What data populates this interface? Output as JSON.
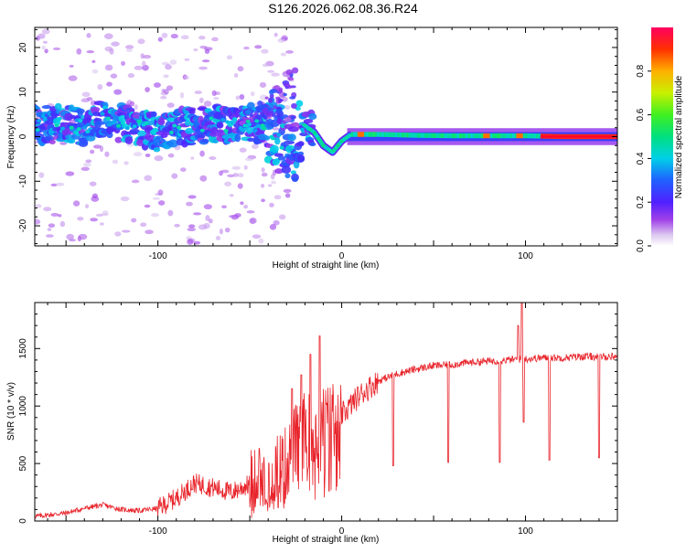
{
  "title": "S126.2026.062.08.36.R24",
  "colors": {
    "line": "#e8232a",
    "axis": "#000000",
    "background": "#ffffff"
  },
  "chart_data": [
    {
      "type": "heatmap",
      "xlabel": "Height of straight line (km)",
      "ylabel": "Frequency (Hz)",
      "xlim": [
        -167,
        150
      ],
      "ylim": [
        -24.5,
        24.5
      ],
      "x_ticks": [
        -100,
        0,
        100
      ],
      "x_tick_labels": [
        "-100",
        "0",
        "100"
      ],
      "y_ticks": [
        -20,
        -10,
        0,
        10,
        20
      ],
      "y_tick_labels": [
        "-20",
        "-10",
        "0",
        "10",
        "20"
      ],
      "colorbar": {
        "label": "Normalized spectral amplitude",
        "range": [
          0,
          1
        ],
        "ticks": [
          0,
          0.2,
          0.4,
          0.6,
          0.8
        ],
        "tick_labels": [
          "0.0",
          "0.2",
          "0.4",
          "0.6",
          "0.8"
        ]
      },
      "ridge_profile": [
        [
          -167,
          2.5
        ],
        [
          -150,
          3.0
        ],
        [
          -140,
          2.0
        ],
        [
          -130,
          4.0
        ],
        [
          -120,
          3.0
        ],
        [
          -110,
          2.0
        ],
        [
          -100,
          1.0
        ],
        [
          -90,
          2.0
        ],
        [
          -80,
          2.5
        ],
        [
          -70,
          3.0
        ],
        [
          -60,
          2.5
        ],
        [
          -50,
          3.0
        ],
        [
          -40,
          2.0
        ],
        [
          -35,
          0.0
        ],
        [
          -30,
          -4.0
        ],
        [
          -25,
          -2.0
        ],
        [
          -20,
          2.5
        ],
        [
          -15,
          1.0
        ],
        [
          -10,
          -2.0
        ],
        [
          -5,
          -3.5
        ],
        [
          0,
          -1.0
        ],
        [
          5,
          0.5
        ],
        [
          20,
          0.5
        ],
        [
          40,
          0.3
        ],
        [
          60,
          0.2
        ],
        [
          80,
          0.2
        ],
        [
          100,
          0.2
        ],
        [
          120,
          0.0
        ],
        [
          150,
          0.0
        ]
      ]
    },
    {
      "type": "line",
      "xlabel": "Height of straight line (km)",
      "ylabel": "SNR (10 * v/v)",
      "xlim": [
        -167,
        150
      ],
      "ylim": [
        0,
        1900
      ],
      "x_ticks": [
        -100,
        0,
        100
      ],
      "x_tick_labels": [
        "-100",
        "0",
        "100"
      ],
      "y_ticks": [
        0,
        500,
        1000,
        1500
      ],
      "y_tick_labels": [
        "0",
        "500",
        "1000",
        "1500"
      ],
      "profile": [
        [
          -167,
          40
        ],
        [
          -150,
          70
        ],
        [
          -140,
          110
        ],
        [
          -130,
          140
        ],
        [
          -120,
          100
        ],
        [
          -110,
          90
        ],
        [
          -100,
          110
        ],
        [
          -90,
          200
        ],
        [
          -80,
          330
        ],
        [
          -70,
          290
        ],
        [
          -60,
          250
        ],
        [
          -50,
          320
        ],
        [
          -40,
          370
        ],
        [
          -30,
          500
        ],
        [
          -25,
          700
        ],
        [
          -20,
          800
        ],
        [
          -15,
          760
        ],
        [
          -10,
          850
        ],
        [
          -5,
          870
        ],
        [
          0,
          920
        ],
        [
          10,
          1100
        ],
        [
          20,
          1220
        ],
        [
          30,
          1280
        ],
        [
          40,
          1320
        ],
        [
          50,
          1350
        ],
        [
          60,
          1360
        ],
        [
          70,
          1380
        ],
        [
          80,
          1390
        ],
        [
          90,
          1400
        ],
        [
          100,
          1410
        ],
        [
          110,
          1420
        ],
        [
          120,
          1420
        ],
        [
          130,
          1430
        ],
        [
          140,
          1430
        ],
        [
          150,
          1430
        ]
      ],
      "spikes": [
        [
          -12,
          1610
        ],
        [
          -17,
          1450
        ],
        [
          -22,
          1270
        ],
        [
          -27,
          1150
        ],
        [
          98,
          1900
        ],
        [
          96,
          1700
        ]
      ],
      "dips": [
        [
          28,
          480
        ],
        [
          58,
          510
        ],
        [
          86,
          510
        ],
        [
          99,
          860
        ],
        [
          113,
          530
        ],
        [
          140,
          550
        ]
      ]
    }
  ]
}
